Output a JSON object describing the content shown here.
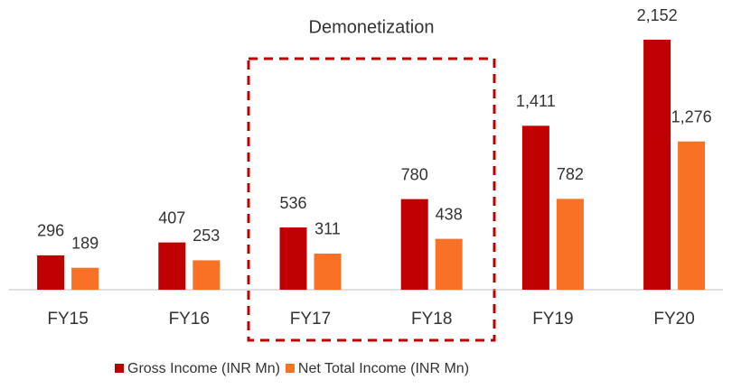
{
  "chart_data": {
    "type": "bar",
    "annotation": "Demonetization",
    "categories": [
      "FY15",
      "FY16",
      "FY17",
      "FY18",
      "FY19",
      "FY20"
    ],
    "series": [
      {
        "name": "Gross Income (INR Mn)",
        "color": "#c00000",
        "values": [
          296,
          407,
          536,
          780,
          1411,
          2152
        ],
        "value_labels": [
          "296",
          "407",
          "536",
          "780",
          "1,411",
          "2,152"
        ]
      },
      {
        "name": "Net Total Income (INR Mn)",
        "color": "#f97125",
        "values": [
          189,
          253,
          311,
          438,
          782,
          1276
        ],
        "value_labels": [
          "189",
          "253",
          "311",
          "438",
          "782",
          "1,276"
        ]
      }
    ],
    "legend": "bottom"
  }
}
